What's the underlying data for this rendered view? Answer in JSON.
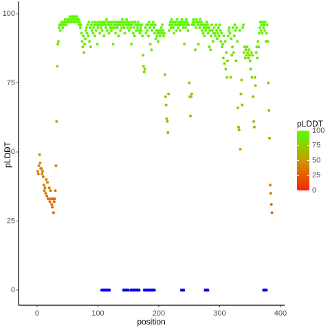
{
  "chart_data": {
    "type": "scatter",
    "xlabel": "position",
    "ylabel": "pLDDT",
    "xlim": [
      -30.5,
      406.8
    ],
    "ylim": [
      -5.5,
      104.5
    ],
    "xticks": [
      0,
      100,
      200,
      300,
      400
    ],
    "yticks": [
      0,
      25,
      50,
      75,
      100
    ],
    "grid": false,
    "colorbar": {
      "title": "pLDDT",
      "lim": [
        0,
        100
      ],
      "ticks": [
        0,
        25,
        50,
        75,
        100
      ],
      "colors": [
        "#ff2000",
        "#cc9900",
        "#55ff00"
      ]
    },
    "series": [
      {
        "x": [
          1,
          2,
          3,
          4,
          5,
          6,
          7,
          8,
          9,
          10,
          11,
          12,
          13,
          14,
          15,
          16,
          17,
          18,
          19,
          20,
          21,
          22,
          23,
          24,
          25,
          26,
          27,
          28,
          29,
          30,
          31,
          32,
          33,
          34,
          35,
          36,
          37,
          38,
          39,
          40,
          41,
          42,
          43,
          44,
          45,
          46,
          47,
          48,
          49,
          50,
          51,
          52,
          53,
          54,
          55,
          56,
          57,
          58,
          59,
          60,
          61,
          62,
          63,
          64,
          65,
          66,
          67,
          68,
          69,
          70,
          71,
          72,
          73,
          74,
          75,
          76,
          77,
          78,
          79,
          80,
          81,
          82,
          83,
          84,
          85,
          86,
          87,
          88,
          89,
          90,
          91,
          92,
          93,
          94,
          95,
          96,
          97,
          98,
          99,
          100,
          101,
          102,
          103,
          104,
          105,
          106,
          107,
          108,
          109,
          110,
          111,
          112,
          113,
          114,
          115,
          116,
          117,
          118,
          119,
          120,
          121,
          122,
          123,
          124,
          125,
          126,
          127,
          128,
          129,
          130,
          131,
          132,
          133,
          134,
          135,
          136,
          137,
          138,
          139,
          140,
          141,
          142,
          143,
          144,
          145,
          146,
          147,
          148,
          149,
          150,
          151,
          152,
          153,
          154,
          155,
          156,
          157,
          158,
          159,
          160,
          161,
          162,
          163,
          164,
          165,
          166,
          167,
          168,
          169,
          170,
          171,
          172,
          173,
          174,
          175,
          176,
          177,
          178,
          179,
          180,
          181,
          182,
          183,
          184,
          185,
          186,
          187,
          188,
          189,
          190,
          191,
          192,
          193,
          194,
          195,
          196,
          197,
          198,
          199,
          200,
          201,
          202,
          203,
          204,
          205,
          206,
          207,
          208,
          209,
          210,
          211,
          212,
          213,
          214,
          215,
          216,
          217,
          218,
          219,
          220,
          221,
          222,
          223,
          224,
          225,
          226,
          227,
          228,
          229,
          230,
          231,
          232,
          233,
          234,
          235,
          236,
          237,
          238,
          239,
          240,
          241,
          242,
          243,
          244,
          245,
          246,
          247,
          248,
          249,
          250,
          251,
          252,
          253,
          254,
          255,
          256,
          257,
          258,
          259,
          260,
          261,
          262,
          263,
          264,
          265,
          266,
          267,
          268,
          269,
          270,
          271,
          272,
          273,
          274,
          275,
          276,
          277,
          278,
          279,
          280,
          281,
          282,
          283,
          284,
          285,
          286,
          287,
          288,
          289,
          290,
          291,
          292,
          293,
          294,
          295,
          296,
          297,
          298,
          299,
          300,
          301,
          302,
          303,
          304,
          305,
          306,
          307,
          308,
          309,
          310,
          311,
          312,
          313,
          314,
          315,
          316,
          317,
          318,
          319,
          320,
          321,
          322,
          323,
          324,
          325,
          326,
          327,
          328,
          329,
          330,
          331,
          332,
          333,
          334,
          335,
          336,
          337,
          338,
          339,
          340,
          341,
          342,
          343,
          344,
          345,
          346,
          347,
          348,
          349,
          350,
          351,
          352,
          353,
          354,
          355,
          356,
          357,
          358,
          359,
          360,
          361,
          362,
          363,
          364,
          365,
          366,
          367,
          368,
          369,
          370,
          371,
          372,
          373,
          374,
          375,
          376,
          377,
          378,
          379,
          380,
          381,
          382,
          383,
          384,
          385,
          386
        ],
        "values": [
          43,
          42,
          45,
          49,
          46,
          44,
          44,
          42,
          43,
          41,
          38,
          36,
          37,
          35,
          40,
          34,
          39,
          33,
          33,
          37,
          32,
          36,
          33,
          31,
          30,
          33,
          28,
          32,
          33,
          36,
          45,
          61,
          81,
          89,
          90,
          95,
          96,
          94,
          96,
          97,
          96,
          95,
          97,
          96,
          97,
          98,
          97,
          96,
          97,
          98,
          98,
          97,
          98,
          99,
          98,
          97,
          98,
          99,
          98,
          97,
          99,
          98,
          97,
          98,
          99,
          98,
          97,
          98,
          96,
          97,
          95,
          96,
          93,
          90,
          88,
          92,
          86,
          89,
          91,
          94,
          95,
          93,
          96,
          92,
          97,
          90,
          95,
          88,
          96,
          94,
          97,
          93,
          95,
          96,
          92,
          97,
          94,
          96,
          89,
          95,
          97,
          96,
          93,
          97,
          95,
          96,
          94,
          97,
          96,
          92,
          97,
          96,
          95,
          98,
          94,
          97,
          96,
          93,
          97,
          95,
          96,
          94,
          97,
          95,
          89,
          96,
          97,
          95,
          93,
          96,
          97,
          95,
          96,
          92,
          97,
          96,
          94,
          97,
          95,
          98,
          96,
          97,
          95,
          93,
          97,
          96,
          98,
          97,
          95,
          96,
          94,
          97,
          96,
          95,
          89,
          96,
          97,
          93,
          95,
          92,
          97,
          96,
          94,
          96,
          95,
          97,
          94,
          96,
          93,
          95,
          94,
          96,
          92,
          85,
          81,
          79,
          80,
          95,
          93,
          96,
          94,
          96,
          92,
          97,
          95,
          89,
          96,
          87,
          94,
          96,
          97,
          95,
          93,
          96,
          91,
          94,
          92,
          93,
          90,
          94,
          93,
          92,
          94,
          95,
          93,
          96,
          94,
          92,
          93,
          78,
          70,
          67,
          62,
          61,
          57,
          71,
          94,
          96,
          97,
          95,
          98,
          96,
          97,
          95,
          93,
          97,
          96,
          97,
          94,
          98,
          96,
          95,
          97,
          96,
          94,
          97,
          96,
          98,
          97,
          95,
          96,
          89,
          97,
          95,
          98,
          96,
          97,
          94,
          96,
          75,
          70,
          63,
          70,
          71,
          96,
          97,
          98,
          96,
          97,
          87,
          95,
          98,
          97,
          96,
          89,
          97,
          95,
          98,
          96,
          97,
          94,
          96,
          93,
          95,
          92,
          96,
          94,
          95,
          97,
          96,
          93,
          95,
          88,
          94,
          87,
          92,
          96,
          94,
          90,
          93,
          95,
          93,
          92,
          96,
          94,
          91,
          93,
          95,
          92,
          96,
          94,
          90,
          93,
          88,
          89,
          84,
          92,
          82,
          90,
          80,
          86,
          77,
          83,
          92,
          94,
          95,
          93,
          77,
          91,
          85,
          88,
          95,
          86,
          92,
          96,
          94,
          83,
          95,
          90,
          66,
          59,
          58,
          94,
          51,
          71,
          76,
          67,
          95,
          96,
          86,
          88,
          84,
          87,
          85,
          88,
          86,
          84,
          87,
          85,
          83,
          80,
          86,
          77,
          85,
          70,
          61,
          59,
          77,
          74,
          86,
          88,
          84,
          90,
          88,
          93,
          95,
          97,
          94,
          96,
          93,
          97,
          95,
          96,
          94,
          97,
          90,
          93,
          96,
          90,
          75,
          65,
          55,
          38,
          35,
          31,
          28
        ]
      },
      {
        "color": "#0000ee",
        "x": [
          106,
          107,
          108,
          109,
          110,
          111,
          112,
          113,
          114,
          115,
          116,
          117,
          118,
          119,
          142,
          143,
          144,
          145,
          146,
          147,
          148,
          149,
          150,
          154,
          155,
          156,
          157,
          158,
          159,
          160,
          161,
          162,
          163,
          164,
          165,
          166,
          167,
          168,
          176,
          177,
          178,
          179,
          180,
          181,
          182,
          183,
          184,
          185,
          186,
          187,
          188,
          189,
          190,
          191,
          192,
          193,
          237,
          238,
          239,
          240,
          241,
          276,
          277,
          278,
          279,
          280,
          281,
          372,
          373,
          374,
          375,
          376,
          377
        ],
        "values": [
          0,
          0,
          0,
          0,
          0,
          0,
          0,
          0,
          0,
          0,
          0,
          0,
          0,
          0,
          0,
          0,
          0,
          0,
          0,
          0,
          0,
          0,
          0,
          0,
          0,
          0,
          0,
          0,
          0,
          0,
          0,
          0,
          0,
          0,
          0,
          0,
          0,
          0,
          0,
          0,
          0,
          0,
          0,
          0,
          0,
          0,
          0,
          0,
          0,
          0,
          0,
          0,
          0,
          0,
          0,
          0,
          0,
          0,
          0,
          0,
          0,
          0,
          0,
          0,
          0,
          0,
          0,
          0,
          0,
          0,
          0,
          0,
          0
        ]
      }
    ]
  }
}
